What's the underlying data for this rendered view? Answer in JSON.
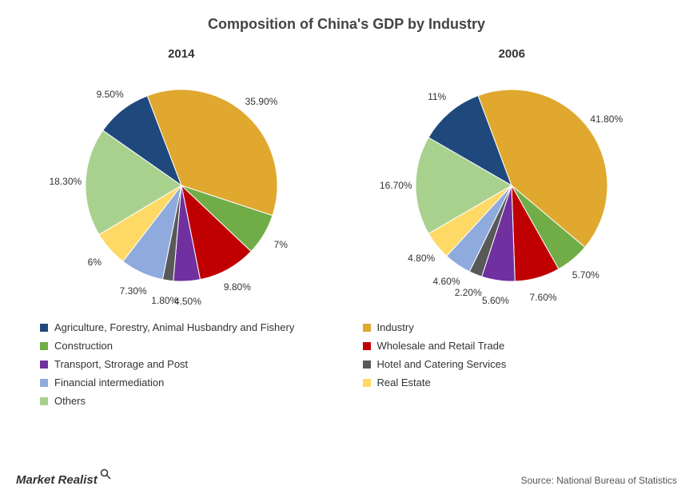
{
  "title": "Composition of China's GDP by Industry",
  "brand": "Market Realist",
  "source_text": "Source: National Bureau of Statistics",
  "colors": {
    "agriculture": "#1f497d",
    "industry": "#e0a82e",
    "construction": "#70ad47",
    "wholesale": "#c00000",
    "transport": "#7030a0",
    "hotel": "#595959",
    "financial": "#8faadc",
    "real_estate": "#ffd966",
    "others": "#a9d18e"
  },
  "legend_labels": {
    "agriculture": "Agriculture, Forestry, Animal Husbandry and Fishery",
    "industry": "Industry",
    "construction": "Construction",
    "wholesale": "Wholesale and Retail Trade",
    "transport": "Transport, Strorage and Post",
    "hotel": "Hotel and Catering Services",
    "financial": "Financial intermediation",
    "real_estate": "Real Estate",
    "others": "Others"
  },
  "legend_order": [
    "agriculture",
    "industry",
    "construction",
    "wholesale",
    "transport",
    "hotel",
    "financial",
    "real_estate",
    "others"
  ],
  "pie_radius": 120,
  "label_radius": 145,
  "charts": [
    {
      "year": "2014",
      "start_angle_deg": -55,
      "slices": [
        {
          "key": "agriculture",
          "value": 9.5,
          "label": "9.50%"
        },
        {
          "key": "industry",
          "value": 35.9,
          "label": "35.90%"
        },
        {
          "key": "construction",
          "value": 7.0,
          "label": "7%"
        },
        {
          "key": "wholesale",
          "value": 9.8,
          "label": "9.80%"
        },
        {
          "key": "transport",
          "value": 4.5,
          "label": "4.50%"
        },
        {
          "key": "hotel",
          "value": 1.8,
          "label": "1.80%"
        },
        {
          "key": "financial",
          "value": 7.3,
          "label": "7.30%"
        },
        {
          "key": "real_estate",
          "value": 6.0,
          "label": "6%"
        },
        {
          "key": "others",
          "value": 18.3,
          "label": "18.30%"
        }
      ]
    },
    {
      "year": "2006",
      "start_angle_deg": -60,
      "slices": [
        {
          "key": "agriculture",
          "value": 11.0,
          "label": "11%"
        },
        {
          "key": "industry",
          "value": 41.8,
          "label": "41.80%"
        },
        {
          "key": "construction",
          "value": 5.7,
          "label": "5.70%"
        },
        {
          "key": "wholesale",
          "value": 7.6,
          "label": "7.60%"
        },
        {
          "key": "transport",
          "value": 5.6,
          "label": "5.60%"
        },
        {
          "key": "hotel",
          "value": 2.2,
          "label": "2.20%"
        },
        {
          "key": "financial",
          "value": 4.6,
          "label": "4.60%"
        },
        {
          "key": "real_estate",
          "value": 4.8,
          "label": "4.80%"
        },
        {
          "key": "others",
          "value": 16.7,
          "label": "16.70%"
        }
      ]
    }
  ],
  "svg_size": 300,
  "background_color": "#ffffff"
}
